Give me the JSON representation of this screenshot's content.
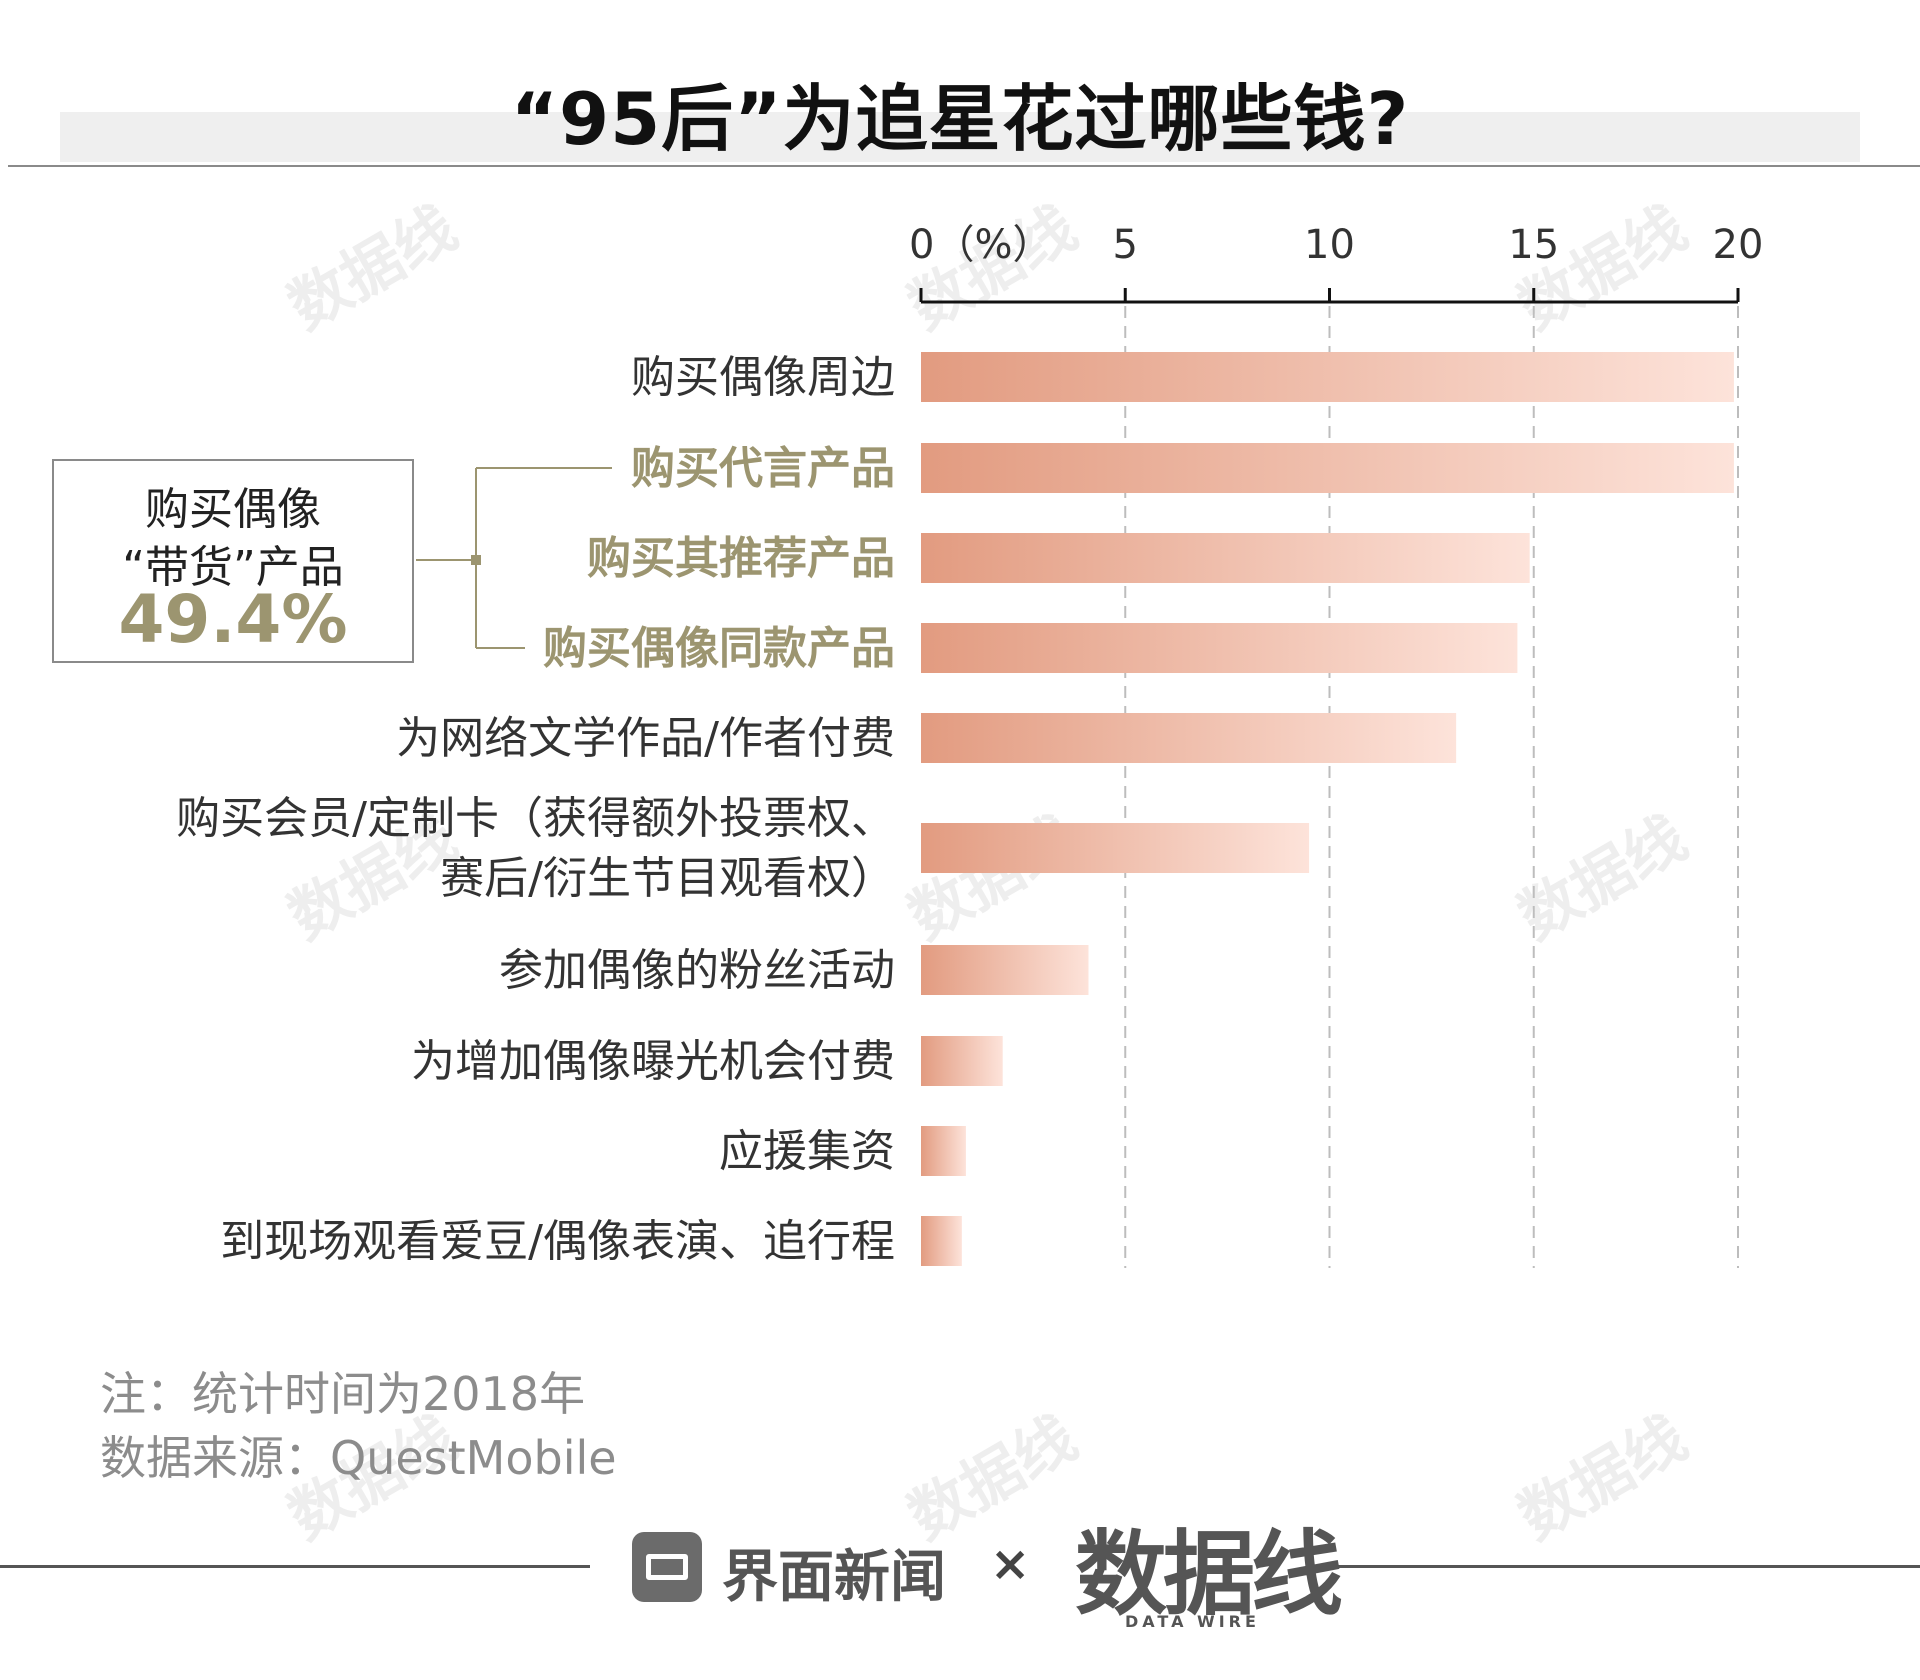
{
  "title": "“95后”为追星花过哪些钱?",
  "chart_data": {
    "type": "bar",
    "orientation": "horizontal",
    "title": "“95后”为追星花过哪些钱?",
    "axis_top_ticks": [
      "0（%）",
      "5",
      "10",
      "15",
      "20"
    ],
    "xlim": [
      0,
      20
    ],
    "grid": true,
    "categories": [
      "购买偶像周边",
      "购买代言产品",
      "购买其推荐产品",
      "购买偶像同款产品",
      "为网络文学作品/作者付费",
      "购买会员/定制卡（获得额外投票权、赛后/衍生节目观看权）",
      "参加偶像的粉丝活动",
      "为增加偶像曝光机会付费",
      "应援集资",
      "到现场观看爱豆/偶像表演、追行程"
    ],
    "category_lines": [
      [
        "购买偶像周边"
      ],
      [
        "购买代言产品"
      ],
      [
        "购买其推荐产品"
      ],
      [
        "购买偶像同款产品"
      ],
      [
        "为网络文学作品/作者付费"
      ],
      [
        "购买会员/定制卡（获得额外投票权、",
        "赛后/衍生节目观看权）"
      ],
      [
        "参加偶像的粉丝活动"
      ],
      [
        "为增加偶像曝光机会付费"
      ],
      [
        "应援集资"
      ],
      [
        "到现场观看爱豆/偶像表演、追行程"
      ]
    ],
    "values": [
      19.9,
      19.9,
      14.9,
      14.6,
      13.1,
      9.5,
      4.1,
      2.0,
      1.1,
      1.0
    ],
    "highlighted": [
      1,
      2,
      3
    ],
    "bar_color_start": "#e29b80",
    "bar_color_end": "#fde3da",
    "highlight_color": "#9c9570"
  },
  "callout": {
    "line1": "购买偶像",
    "line2": "“带货”产品",
    "value": "49.4%"
  },
  "notes": {
    "note": "注：统计时间为2018年",
    "source": "数据来源：QuestMobile"
  },
  "footer": {
    "brand1": "界面新闻",
    "times": "×",
    "brand2": "数据线",
    "brand2_sub": "DATA WIRE"
  }
}
